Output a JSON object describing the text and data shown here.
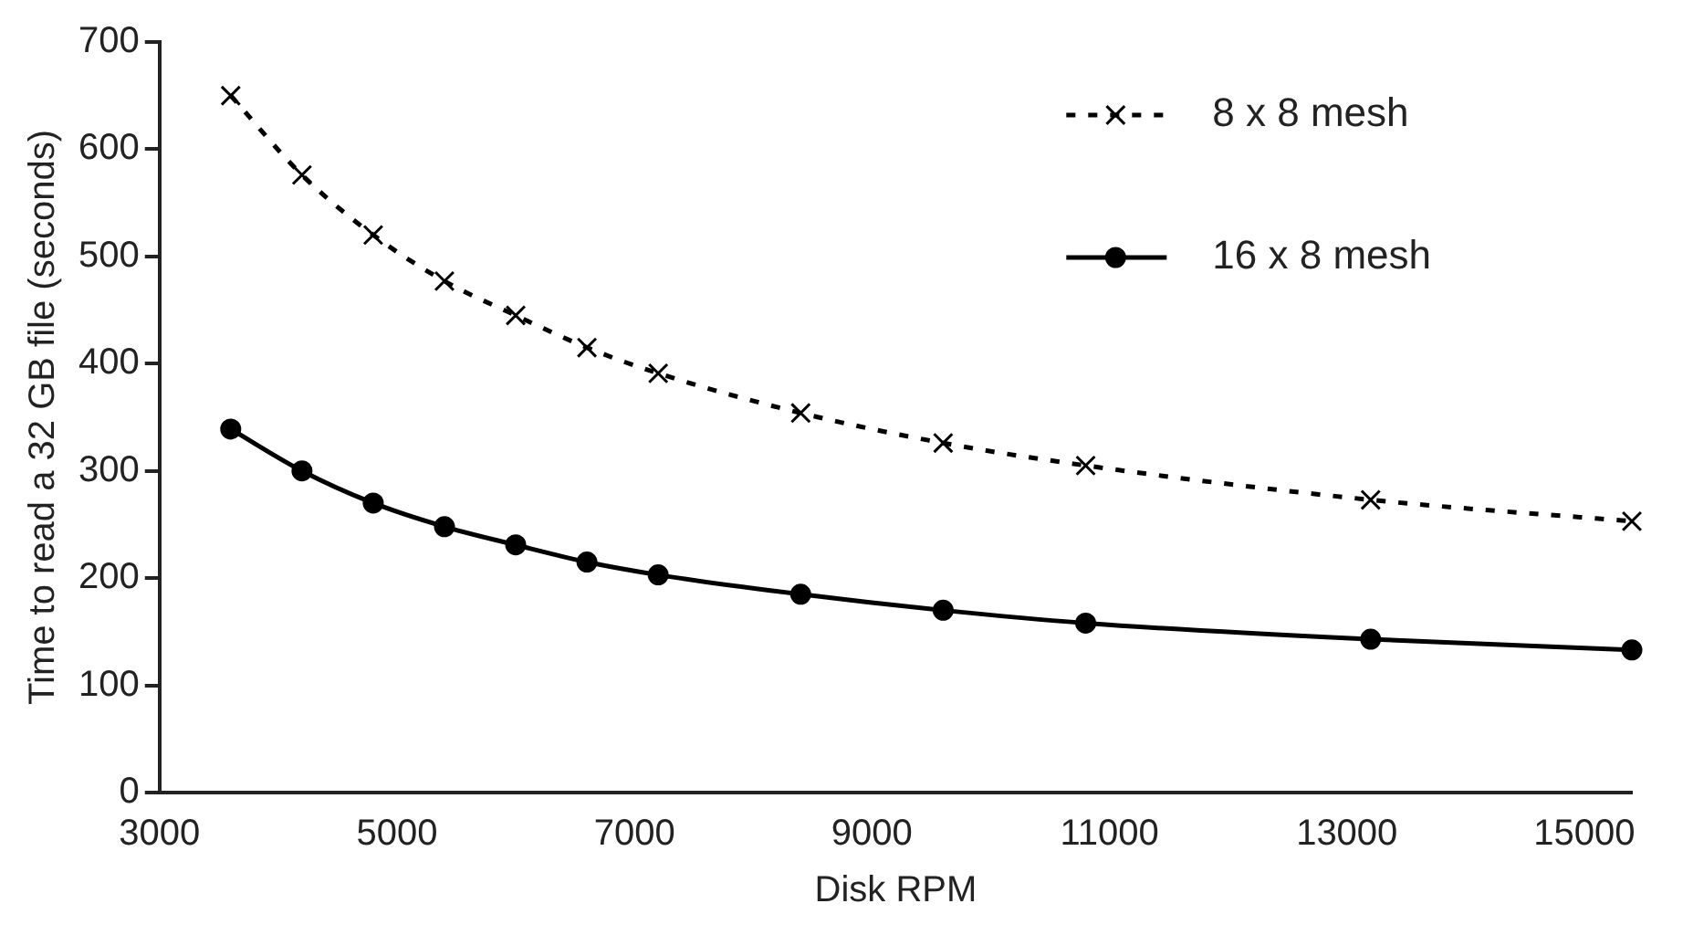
{
  "chart_data": {
    "type": "line",
    "xlabel": "Disk RPM",
    "ylabel": "Time to read a 32 GB file (seconds)",
    "x": [
      3600,
      4200,
      4800,
      5400,
      6000,
      6600,
      7200,
      8400,
      9600,
      10800,
      13200,
      15400
    ],
    "series": [
      {
        "name": "8 x 8 mesh",
        "color": "#000000",
        "marker": "cross",
        "line_style": "dotted",
        "values": [
          650,
          576,
          520,
          477,
          445,
          415,
          391,
          354,
          326,
          305,
          273,
          253
        ]
      },
      {
        "name": "16 x 8 mesh",
        "color": "#000000",
        "marker": "circle",
        "line_style": "solid",
        "values": [
          339,
          300,
          270,
          248,
          231,
          215,
          203,
          185,
          170,
          158,
          143,
          133
        ]
      }
    ],
    "xlim": [
      3000,
      15400
    ],
    "xticks": [
      3000,
      5000,
      7000,
      9000,
      11000,
      13000,
      15000
    ],
    "ylim": [
      0,
      700
    ],
    "yticks": [
      0,
      100,
      200,
      300,
      400,
      500,
      600,
      700
    ],
    "grid": false,
    "legend": "top right"
  }
}
